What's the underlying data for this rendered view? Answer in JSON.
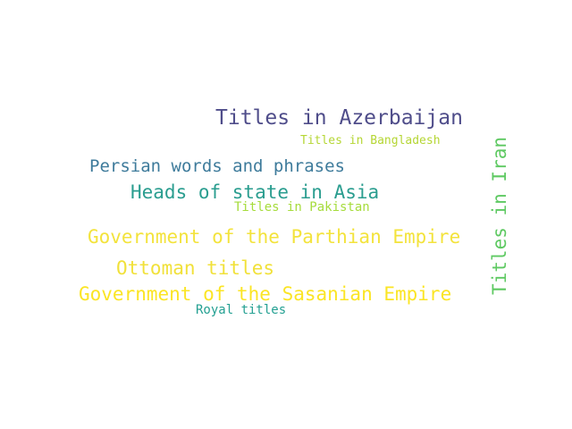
{
  "words": [
    {
      "id": "azerbaijan",
      "text": "Titles in Azerbaijan",
      "color": "#4f4d8a"
    },
    {
      "id": "bangladesh",
      "text": "Titles in Bangladesh",
      "color": "#b5d634"
    },
    {
      "id": "iran",
      "text": "Titles in Iran",
      "color": "#5ec962",
      "orientation": "vertical"
    },
    {
      "id": "persian",
      "text": "Persian words and phrases",
      "color": "#3e7b9b"
    },
    {
      "id": "heads",
      "text": "Heads of state in Asia",
      "color": "#2a9d8f"
    },
    {
      "id": "pakistan",
      "text": "Titles in Pakistan",
      "color": "#a6dc3c"
    },
    {
      "id": "parthian",
      "text": "Government of the Parthian Empire",
      "color": "#f3e33c"
    },
    {
      "id": "ottoman",
      "text": "Ottoman titles",
      "color": "#f1e13a"
    },
    {
      "id": "sasanian",
      "text": "Government of the Sasanian Empire",
      "color": "#fbe524"
    },
    {
      "id": "royal",
      "text": "Royal titles",
      "color": "#24a092"
    }
  ]
}
